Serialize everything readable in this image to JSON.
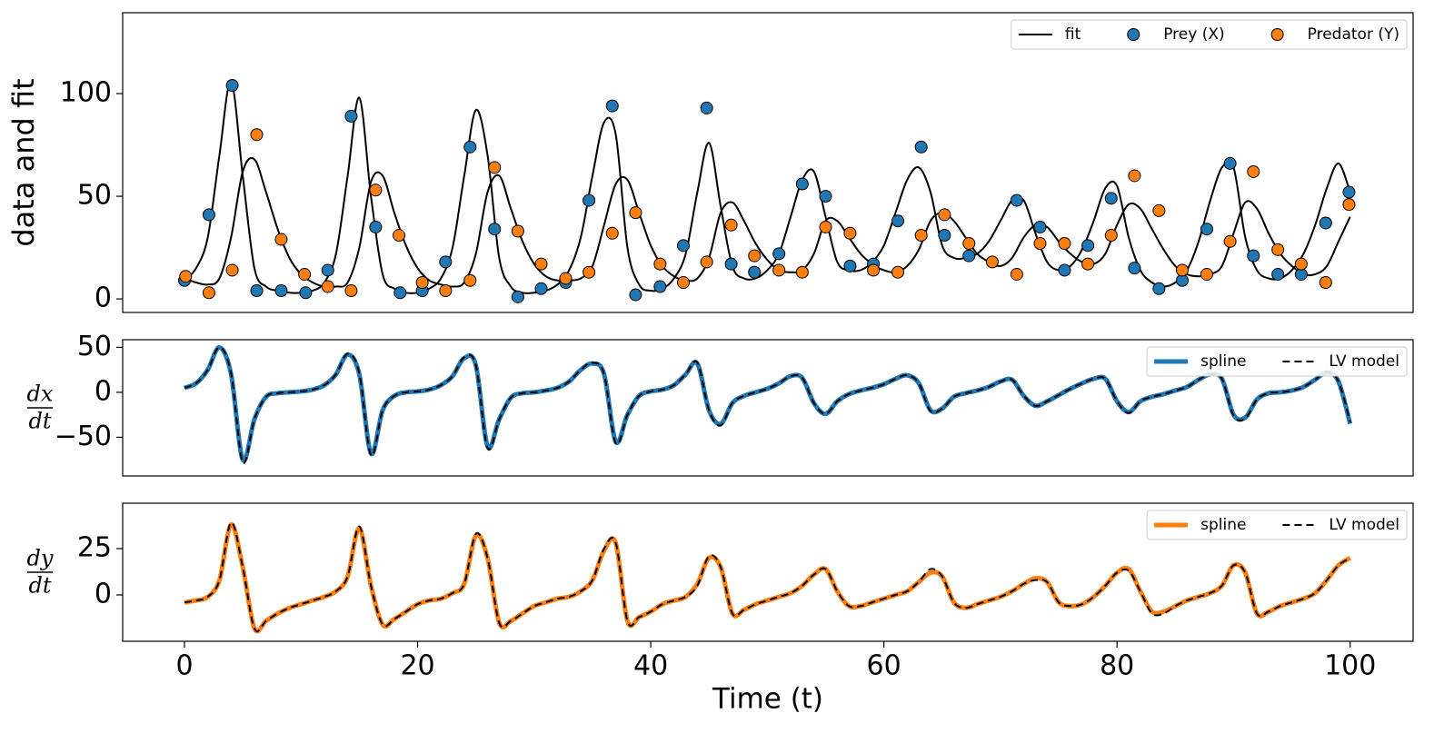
{
  "chart_data": {
    "type": "line",
    "xlabel": "Time (t)",
    "xlim": [
      -5.3,
      105.4
    ],
    "xticks": [
      0,
      20,
      40,
      60,
      80,
      100
    ],
    "x": [
      0,
      1,
      2,
      3,
      4,
      5,
      6,
      7,
      8,
      9,
      10,
      11,
      12,
      13,
      14,
      15,
      16,
      17,
      18,
      19,
      20,
      21,
      22,
      23,
      24,
      25,
      26,
      27,
      28,
      29,
      30,
      31,
      32,
      33,
      34,
      35,
      36,
      37,
      38,
      39,
      40,
      41,
      42,
      43,
      44,
      45,
      46,
      47,
      48,
      49,
      50,
      51,
      52,
      53,
      54,
      55,
      56,
      57,
      58,
      59,
      60,
      61,
      62,
      63,
      64,
      65,
      66,
      67,
      68,
      69,
      70,
      71,
      72,
      73,
      74,
      75,
      76,
      77,
      78,
      79,
      80,
      81,
      82,
      83,
      84,
      85,
      86,
      87,
      88,
      89,
      90,
      91,
      92,
      93,
      94,
      95,
      96,
      97,
      98,
      99,
      100
    ],
    "panels": [
      {
        "ylabel": "data and fit",
        "ylim": [
          -6.6,
          139.4
        ],
        "yticks": [
          0,
          50,
          100
        ],
        "series": [
          {
            "name": "fit",
            "color": "#000000",
            "linestyle": "solid",
            "linewidth": 2,
            "values": [
              9,
              15,
              30,
              70,
              106,
              60,
              15,
              6,
              4,
              3,
              3,
              4,
              8,
              22,
              60,
              98,
              50,
              12,
              5,
              3,
              3,
              5,
              10,
              25,
              60,
              92,
              70,
              20,
              6,
              3,
              3,
              4,
              7,
              14,
              30,
              60,
              86,
              80,
              25,
              7,
              4,
              5,
              10,
              22,
              52,
              76,
              45,
              16,
              10,
              10,
              14,
              22,
              40,
              58,
              62,
              40,
              18,
              14,
              14,
              18,
              26,
              42,
              58,
              64,
              52,
              26,
              20,
              20,
              22,
              28,
              38,
              48,
              48,
              32,
              18,
              14,
              16,
              24,
              38,
              54,
              55,
              30,
              14,
              8,
              6,
              8,
              14,
              28,
              48,
              64,
              64,
              30,
              14,
              10,
              10,
              14,
              22,
              36,
              54,
              66,
              52
            ]
          },
          {
            "color": "#000000",
            "linestyle": "solid",
            "linewidth": 2,
            "values": [
              10,
              8,
              7,
              10,
              30,
              62,
              68,
              52,
              34,
              20,
              12,
              8,
              6,
              6,
              8,
              25,
              57,
              60,
              42,
              26,
              15,
              9,
              7,
              6,
              8,
              22,
              52,
              60,
              44,
              28,
              17,
              11,
              9,
              9,
              10,
              16,
              36,
              56,
              58,
              42,
              26,
              16,
              11,
              9,
              10,
              20,
              42,
              47,
              38,
              27,
              19,
              14,
              13,
              14,
              22,
              38,
              38,
              30,
              22,
              17,
              14,
              13,
              16,
              24,
              38,
              42,
              38,
              30,
              22,
              18,
              16,
              20,
              30,
              36,
              35,
              28,
              22,
              18,
              17,
              22,
              36,
              46,
              44,
              34,
              24,
              16,
              12,
              11,
              12,
              16,
              32,
              47,
              44,
              32,
              22,
              16,
              12,
              12,
              16,
              28,
              40
            ]
          }
        ],
        "scatter": [
          {
            "name": "Prey (X)",
            "color": "#1f77b4",
            "x": [
              0,
              2.1,
              4.1,
              6.2,
              8.3,
              10.4,
              12.3,
              14.3,
              16.4,
              18.5,
              20.4,
              22.4,
              24.5,
              26.6,
              28.6,
              30.6,
              32.7,
              34.7,
              36.7,
              38.7,
              40.8,
              42.8,
              44.8,
              46.9,
              48.9,
              51.0,
              53.0,
              55.0,
              57.1,
              59.1,
              61.2,
              63.2,
              65.2,
              67.3,
              71.4,
              73.4,
              75.5,
              77.5,
              79.5,
              81.5,
              83.6,
              85.6,
              87.7,
              89.7,
              91.7,
              93.8,
              95.8,
              97.9,
              99.9
            ],
            "values": [
              9,
              41,
              104,
              4,
              4,
              3,
              14,
              89,
              35,
              3,
              4,
              18,
              74,
              34,
              1,
              5,
              8,
              48,
              94,
              2,
              6,
              26,
              93,
              17,
              13,
              22,
              56,
              50,
              16,
              17,
              38,
              74,
              31,
              21,
              48,
              35,
              14,
              26,
              49,
              15,
              5,
              9,
              34,
              66,
              21,
              12,
              12,
              37,
              52
            ]
          },
          {
            "name": "Predator (Y)",
            "color": "#ff7f0e",
            "x": [
              0.1,
              2.1,
              4.1,
              6.2,
              8.3,
              10.3,
              12.3,
              14.3,
              16.4,
              18.4,
              20.4,
              22.4,
              24.5,
              26.6,
              28.6,
              30.6,
              32.7,
              34.7,
              36.7,
              38.7,
              40.8,
              42.8,
              44.8,
              46.9,
              48.9,
              51.0,
              53.0,
              55.0,
              57.1,
              59.1,
              61.2,
              63.2,
              65.2,
              67.3,
              69.3,
              71.4,
              73.4,
              75.5,
              77.5,
              79.5,
              81.5,
              83.6,
              85.6,
              87.7,
              89.7,
              91.7,
              93.8,
              95.8,
              97.9,
              99.9
            ],
            "values": [
              11,
              3,
              14,
              80,
              29,
              12,
              6,
              4,
              53,
              31,
              8,
              4,
              9,
              64,
              33,
              17,
              10,
              13,
              32,
              42,
              17,
              8,
              18,
              36,
              21,
              14,
              13,
              35,
              32,
              14,
              13,
              31,
              41,
              27,
              18,
              12,
              27,
              27,
              17,
              31,
              60,
              43,
              14,
              12,
              28,
              62,
              24,
              17,
              8,
              46
            ]
          }
        ]
      },
      {
        "ylabel_num": "dx",
        "ylabel_den": "dt",
        "ylim": [
          -93,
          58.5
        ],
        "yticks": [
          {
            "value": -50,
            "label": "−50"
          },
          0,
          50
        ],
        "series": [
          {
            "name": "spline",
            "color": "#1f77b4",
            "linestyle": "solid",
            "linewidth": 5,
            "values": [
              5,
              10,
              25,
              50,
              20,
              -75,
              -30,
              -5,
              -1,
              0,
              1,
              3,
              8,
              20,
              42,
              20,
              -68,
              -20,
              -4,
              0,
              1,
              3,
              8,
              18,
              38,
              30,
              -60,
              -30,
              -6,
              -1,
              0,
              2,
              5,
              12,
              25,
              32,
              20,
              -55,
              -25,
              -4,
              1,
              3,
              8,
              20,
              32,
              -20,
              -35,
              -12,
              -4,
              0,
              4,
              10,
              18,
              16,
              -12,
              -24,
              -10,
              -2,
              2,
              5,
              9,
              15,
              19,
              10,
              -20,
              -18,
              -5,
              -1,
              2,
              6,
              12,
              14,
              -4,
              -15,
              -10,
              -3,
              4,
              10,
              15,
              15,
              -10,
              -22,
              -10,
              -5,
              -2,
              2,
              6,
              14,
              20,
              15,
              -25,
              -28,
              -8,
              -1,
              0,
              2,
              6,
              14,
              22,
              12,
              -35
            ]
          },
          {
            "name": "LV model",
            "color": "#000000",
            "linestyle": "dashed",
            "linewidth": 2,
            "values": [
              5,
              10,
              25,
              50,
              21,
              -78,
              -30,
              -5,
              -1,
              0,
              1,
              3,
              8,
              20,
              43,
              21,
              -70,
              -20,
              -4,
              0,
              1,
              3,
              8,
              18,
              39,
              30,
              -62,
              -30,
              -6,
              -1,
              0,
              2,
              5,
              12,
              25,
              33,
              20,
              -57,
              -25,
              -4,
              1,
              3,
              8,
              20,
              33,
              -20,
              -37,
              -12,
              -4,
              0,
              4,
              10,
              18,
              16,
              -12,
              -24,
              -10,
              -2,
              2,
              5,
              9,
              15,
              19,
              10,
              -21,
              -18,
              -5,
              -1,
              2,
              6,
              12,
              14,
              -4,
              -15,
              -10,
              -3,
              4,
              10,
              15,
              15,
              -10,
              -23,
              -10,
              -5,
              -2,
              2,
              6,
              14,
              20,
              15,
              -26,
              -29,
              -8,
              -1,
              0,
              2,
              6,
              14,
              23,
              12,
              -33
            ]
          }
        ]
      },
      {
        "ylabel_num": "dy",
        "ylabel_den": "dt",
        "ylim": [
          -25,
          49.5
        ],
        "yticks": [
          0,
          25
        ],
        "series": [
          {
            "name": "spline",
            "color": "#ff7f0e",
            "linestyle": "solid",
            "linewidth": 5,
            "values": [
              -4,
              -3,
              -1,
              8,
              38,
              15,
              -18,
              -14,
              -10,
              -7,
              -5,
              -3,
              -1,
              2,
              10,
              36,
              5,
              -16,
              -13,
              -9,
              -5,
              -3,
              -2,
              1,
              6,
              32,
              20,
              -15,
              -14,
              -10,
              -6,
              -4,
              -2,
              -1,
              2,
              8,
              24,
              28,
              -14,
              -12,
              -9,
              -5,
              -3,
              -1,
              6,
              20,
              15,
              -10,
              -8,
              -5,
              -3,
              -1,
              1,
              5,
              11,
              14,
              2,
              -6,
              -6,
              -4,
              -2,
              0,
              2,
              7,
              12,
              10,
              -4,
              -7,
              -5,
              -3,
              -1,
              2,
              6,
              9,
              7,
              -4,
              -6,
              -5,
              -1,
              5,
              12,
              14,
              2,
              -9,
              -9,
              -6,
              -3,
              -1,
              1,
              5,
              16,
              12,
              -10,
              -9,
              -6,
              -4,
              -2,
              1,
              8,
              16,
              20
            ]
          },
          {
            "name": "LV model",
            "color": "#000000",
            "linestyle": "dashed",
            "linewidth": 2,
            "values": [
              -4,
              -3,
              -1,
              8,
              39,
              15,
              -18,
              -14,
              -10,
              -7,
              -5,
              -3,
              -1,
              2,
              10,
              37,
              5,
              -16,
              -13,
              -9,
              -5,
              -3,
              -2,
              1,
              6,
              33,
              20,
              -15,
              -14,
              -10,
              -6,
              -4,
              -2,
              -1,
              2,
              8,
              25,
              28,
              -14,
              -12,
              -9,
              -5,
              -3,
              -1,
              5,
              21,
              15,
              -10,
              -8,
              -5,
              -3,
              -1,
              1,
              5,
              11,
              14,
              2,
              -6,
              -6,
              -4,
              -2,
              0,
              2,
              7,
              14,
              10,
              -4,
              -7,
              -5,
              -3,
              -1,
              2,
              6,
              8,
              7,
              -4,
              -6,
              -5,
              -1,
              5,
              12,
              13,
              2,
              -10,
              -10,
              -6,
              -3,
              -1,
              1,
              5,
              16,
              12,
              -10,
              -9,
              -6,
              -4,
              -2,
              1,
              8,
              16,
              20
            ]
          }
        ]
      }
    ]
  }
}
